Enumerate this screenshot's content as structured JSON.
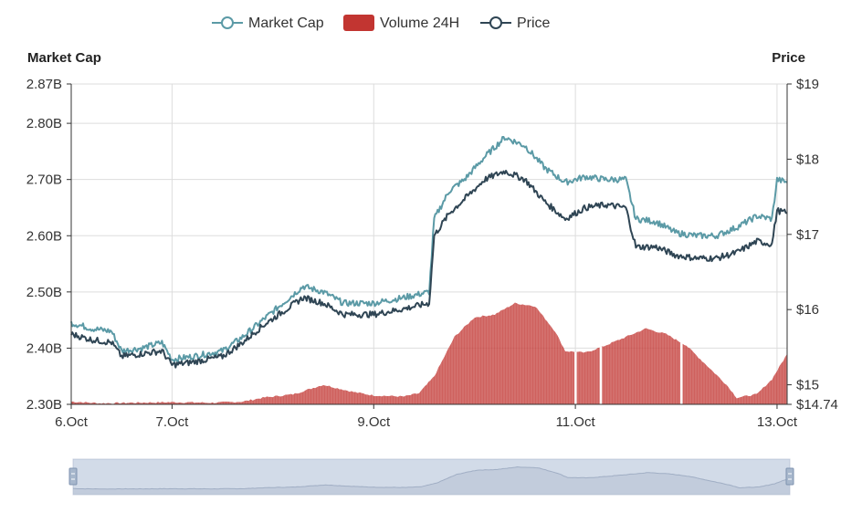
{
  "chart_data": {
    "type": "line",
    "legend": {
      "position": "top-center",
      "items": [
        {
          "label": "Market Cap",
          "color": "#5b9aa6",
          "marker": "line-circle"
        },
        {
          "label": "Volume 24H",
          "color": "#c23531",
          "marker": "rect"
        },
        {
          "label": "Price",
          "color": "#2f4554",
          "marker": "line-circle"
        }
      ]
    },
    "left_axis": {
      "title": "Market Cap",
      "range": [
        2.3,
        2.87
      ],
      "ticks": [
        2.3,
        2.4,
        2.5,
        2.6,
        2.7,
        2.8,
        2.87
      ],
      "tick_labels": [
        "2.30B",
        "2.40B",
        "2.50B",
        "2.60B",
        "2.70B",
        "2.80B",
        "2.87B"
      ]
    },
    "right_axis": {
      "title": "Price",
      "range": [
        14.74,
        19
      ],
      "ticks": [
        14.74,
        15,
        16,
        17,
        18,
        19
      ],
      "tick_labels": [
        "$14.74",
        "$15",
        "$16",
        "$17",
        "$18",
        "$19"
      ]
    },
    "x_axis": {
      "range": [
        6.0,
        13.1
      ],
      "ticks": [
        6.0,
        7.0,
        9.0,
        11.0,
        13.0
      ],
      "tick_labels": [
        "6.Oct",
        "7.Oct",
        "9.Oct",
        "11.Oct",
        "13.Oct"
      ]
    },
    "grid": true,
    "series": [
      {
        "name": "Market Cap",
        "axis": "left",
        "color": "#5b9aa6",
        "points": [
          [
            6.0,
            2.445
          ],
          [
            6.2,
            2.435
          ],
          [
            6.4,
            2.43
          ],
          [
            6.5,
            2.395
          ],
          [
            6.7,
            2.4
          ],
          [
            6.9,
            2.41
          ],
          [
            7.0,
            2.38
          ],
          [
            7.2,
            2.385
          ],
          [
            7.5,
            2.395
          ],
          [
            7.7,
            2.42
          ],
          [
            7.9,
            2.45
          ],
          [
            8.1,
            2.48
          ],
          [
            8.3,
            2.51
          ],
          [
            8.5,
            2.5
          ],
          [
            8.7,
            2.48
          ],
          [
            9.0,
            2.48
          ],
          [
            9.3,
            2.49
          ],
          [
            9.55,
            2.5
          ],
          [
            9.6,
            2.63
          ],
          [
            9.75,
            2.68
          ],
          [
            9.9,
            2.7
          ],
          [
            10.1,
            2.74
          ],
          [
            10.3,
            2.775
          ],
          [
            10.5,
            2.76
          ],
          [
            10.7,
            2.72
          ],
          [
            10.9,
            2.695
          ],
          [
            11.1,
            2.705
          ],
          [
            11.3,
            2.7
          ],
          [
            11.5,
            2.7
          ],
          [
            11.6,
            2.63
          ],
          [
            11.8,
            2.625
          ],
          [
            12.0,
            2.605
          ],
          [
            12.2,
            2.6
          ],
          [
            12.4,
            2.6
          ],
          [
            12.6,
            2.615
          ],
          [
            12.8,
            2.635
          ],
          [
            12.95,
            2.63
          ],
          [
            13.0,
            2.7
          ],
          [
            13.1,
            2.695
          ]
        ]
      },
      {
        "name": "Price",
        "axis": "left",
        "color": "#2f4554",
        "points": [
          [
            6.0,
            2.425
          ],
          [
            6.2,
            2.415
          ],
          [
            6.4,
            2.41
          ],
          [
            6.5,
            2.385
          ],
          [
            6.7,
            2.39
          ],
          [
            6.9,
            2.395
          ],
          [
            7.0,
            2.37
          ],
          [
            7.2,
            2.375
          ],
          [
            7.5,
            2.385
          ],
          [
            7.7,
            2.41
          ],
          [
            7.9,
            2.44
          ],
          [
            8.1,
            2.465
          ],
          [
            8.3,
            2.49
          ],
          [
            8.5,
            2.48
          ],
          [
            8.7,
            2.46
          ],
          [
            9.0,
            2.46
          ],
          [
            9.3,
            2.47
          ],
          [
            9.55,
            2.48
          ],
          [
            9.6,
            2.6
          ],
          [
            9.75,
            2.64
          ],
          [
            9.9,
            2.665
          ],
          [
            10.1,
            2.7
          ],
          [
            10.3,
            2.715
          ],
          [
            10.5,
            2.7
          ],
          [
            10.7,
            2.66
          ],
          [
            10.9,
            2.63
          ],
          [
            11.1,
            2.65
          ],
          [
            11.3,
            2.655
          ],
          [
            11.5,
            2.65
          ],
          [
            11.6,
            2.58
          ],
          [
            11.8,
            2.58
          ],
          [
            12.0,
            2.565
          ],
          [
            12.2,
            2.56
          ],
          [
            12.4,
            2.56
          ],
          [
            12.6,
            2.57
          ],
          [
            12.8,
            2.59
          ],
          [
            12.95,
            2.585
          ],
          [
            13.0,
            2.645
          ],
          [
            13.1,
            2.64
          ]
        ]
      },
      {
        "name": "Volume 24H",
        "axis": "left",
        "color": "#c23531",
        "points": [
          [
            6.0,
            2.305
          ],
          [
            6.3,
            2.302
          ],
          [
            6.6,
            2.303
          ],
          [
            7.0,
            2.304
          ],
          [
            7.4,
            2.303
          ],
          [
            7.7,
            2.305
          ],
          [
            7.9,
            2.312
          ],
          [
            8.2,
            2.318
          ],
          [
            8.5,
            2.335
          ],
          [
            8.8,
            2.322
          ],
          [
            9.0,
            2.316
          ],
          [
            9.3,
            2.314
          ],
          [
            9.45,
            2.32
          ],
          [
            9.6,
            2.35
          ],
          [
            9.8,
            2.42
          ],
          [
            10.0,
            2.455
          ],
          [
            10.2,
            2.46
          ],
          [
            10.4,
            2.48
          ],
          [
            10.6,
            2.475
          ],
          [
            10.8,
            2.43
          ],
          [
            10.9,
            2.395
          ],
          [
            11.1,
            2.392
          ],
          [
            11.3,
            2.405
          ],
          [
            11.5,
            2.42
          ],
          [
            11.7,
            2.435
          ],
          [
            11.9,
            2.425
          ],
          [
            12.1,
            2.405
          ],
          [
            12.3,
            2.37
          ],
          [
            12.5,
            2.335
          ],
          [
            12.6,
            2.312
          ],
          [
            12.8,
            2.318
          ],
          [
            12.95,
            2.345
          ],
          [
            13.1,
            2.39
          ]
        ],
        "gaps": [
          11.0,
          11.25,
          12.05
        ]
      }
    ],
    "data_zoom": {
      "start": 0,
      "end": 100
    }
  }
}
